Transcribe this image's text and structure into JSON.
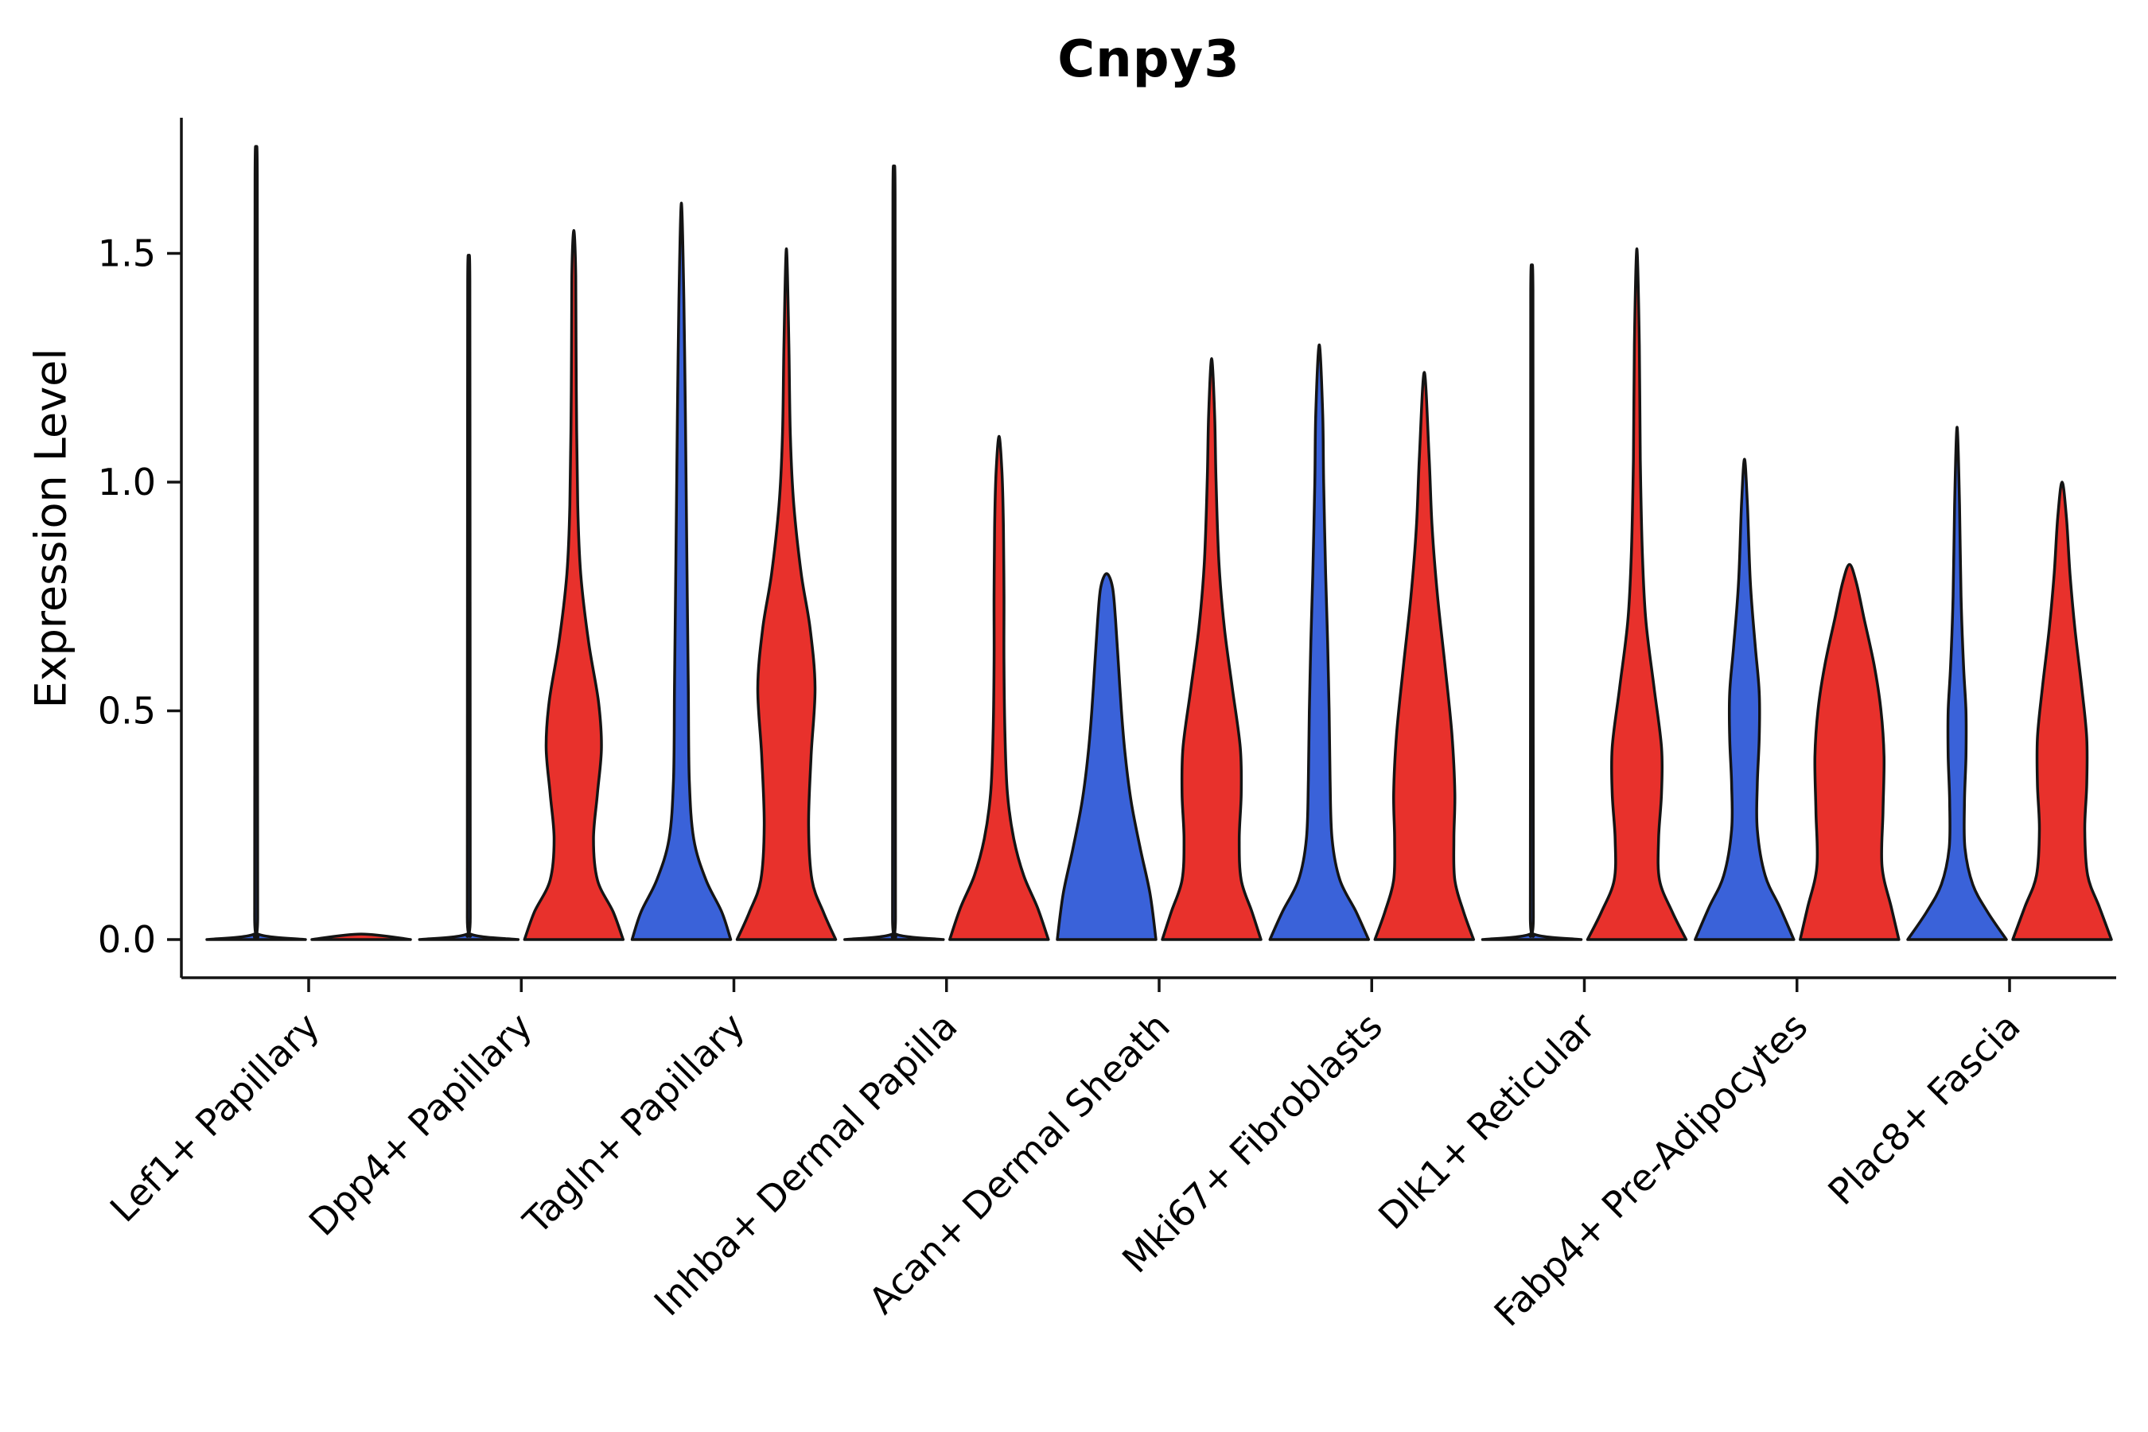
{
  "chart_data": {
    "type": "violin",
    "title": "Cnpy3",
    "ylabel": "Expression Level",
    "xlabel": "",
    "ylim": [
      -0.09,
      1.8
    ],
    "grid": false,
    "legend_position": "none",
    "x_tick_rotation_deg": 45,
    "outline_color": "#141414",
    "yticks": [
      {
        "value": 0.0,
        "label": "0.0"
      },
      {
        "value": 0.5,
        "label": "0.5"
      },
      {
        "value": 1.0,
        "label": "1.0"
      },
      {
        "value": 1.5,
        "label": "1.5"
      }
    ],
    "categories": [
      "Lef1+ Papillary",
      "Dpp4+ Papillary",
      "Tagln+ Papillary",
      "Inhba+ Dermal Papilla",
      "Acan+ Dermal Sheath",
      "Mki67+ Fibroblasts",
      "Dlk1+ Reticular",
      "Fabp4+ Pre-Adipocytes",
      "Plac8+ Fascia"
    ],
    "series": [
      {
        "name": "blue",
        "color": "#3A62D9",
        "violins": [
          {
            "max": 1.72,
            "profile": [
              [
                0,
                1.0
              ],
              [
                0.012,
                0.035
              ],
              [
                0.05,
                0.03
              ],
              [
                0.5,
                0.028
              ],
              [
                1.1,
                0.025
              ],
              [
                1.67,
                0.022
              ],
              [
                1.72,
                0
              ]
            ]
          },
          {
            "max": 1.49,
            "profile": [
              [
                0,
                1.0
              ],
              [
                0.012,
                0.035
              ],
              [
                0.05,
                0.03
              ],
              [
                0.45,
                0.028
              ],
              [
                1.0,
                0.025
              ],
              [
                1.44,
                0.022
              ],
              [
                1.49,
                0
              ]
            ]
          },
          {
            "max": 1.61,
            "profile": [
              [
                0,
                1.0
              ],
              [
                0.06,
                0.82
              ],
              [
                0.13,
                0.5
              ],
              [
                0.22,
                0.25
              ],
              [
                0.35,
                0.16
              ],
              [
                0.55,
                0.14
              ],
              [
                0.75,
                0.12
              ],
              [
                0.95,
                0.1
              ],
              [
                1.15,
                0.08
              ],
              [
                1.4,
                0.05
              ],
              [
                1.61,
                0
              ]
            ]
          },
          {
            "max": 1.68,
            "profile": [
              [
                0,
                1.0
              ],
              [
                0.012,
                0.035
              ],
              [
                0.05,
                0.03
              ],
              [
                0.5,
                0.028
              ],
              [
                1.1,
                0.025
              ],
              [
                1.63,
                0.022
              ],
              [
                1.68,
                0
              ]
            ]
          },
          {
            "max": 0.8,
            "profile": [
              [
                0,
                1.0
              ],
              [
                0.1,
                0.88
              ],
              [
                0.2,
                0.68
              ],
              [
                0.3,
                0.5
              ],
              [
                0.4,
                0.38
              ],
              [
                0.5,
                0.3
              ],
              [
                0.6,
                0.24
              ],
              [
                0.7,
                0.18
              ],
              [
                0.77,
                0.12
              ],
              [
                0.8,
                0
              ]
            ]
          },
          {
            "max": 1.3,
            "profile": [
              [
                0,
                1.0
              ],
              [
                0.06,
                0.75
              ],
              [
                0.13,
                0.42
              ],
              [
                0.22,
                0.26
              ],
              [
                0.35,
                0.22
              ],
              [
                0.5,
                0.2
              ],
              [
                0.65,
                0.17
              ],
              [
                0.8,
                0.13
              ],
              [
                1.0,
                0.09
              ],
              [
                1.15,
                0.07
              ],
              [
                1.3,
                0
              ]
            ]
          },
          {
            "max": 1.47,
            "profile": [
              [
                0,
                1.0
              ],
              [
                0.012,
                0.035
              ],
              [
                0.05,
                0.03
              ],
              [
                0.45,
                0.028
              ],
              [
                1.0,
                0.025
              ],
              [
                1.42,
                0.022
              ],
              [
                1.47,
                0
              ]
            ]
          },
          {
            "max": 1.05,
            "profile": [
              [
                0,
                1.0
              ],
              [
                0.07,
                0.72
              ],
              [
                0.14,
                0.42
              ],
              [
                0.24,
                0.26
              ],
              [
                0.34,
                0.26
              ],
              [
                0.44,
                0.3
              ],
              [
                0.54,
                0.3
              ],
              [
                0.64,
                0.22
              ],
              [
                0.78,
                0.12
              ],
              [
                0.95,
                0.06
              ],
              [
                1.05,
                0
              ]
            ]
          },
          {
            "max": 1.12,
            "profile": [
              [
                0,
                1.0
              ],
              [
                0.06,
                0.62
              ],
              [
                0.12,
                0.32
              ],
              [
                0.2,
                0.16
              ],
              [
                0.3,
                0.15
              ],
              [
                0.4,
                0.18
              ],
              [
                0.5,
                0.18
              ],
              [
                0.6,
                0.13
              ],
              [
                0.75,
                0.08
              ],
              [
                0.95,
                0.05
              ],
              [
                1.12,
                0
              ]
            ]
          }
        ]
      },
      {
        "name": "red",
        "color": "#E8312C",
        "violins": [
          {
            "max": 0.0,
            "profile": [
              [
                0,
                1.0
              ],
              [
                0.012,
                0
              ]
            ]
          },
          {
            "max": 1.55,
            "profile": [
              [
                0,
                1.0
              ],
              [
                0.06,
                0.8
              ],
              [
                0.13,
                0.48
              ],
              [
                0.22,
                0.4
              ],
              [
                0.32,
                0.48
              ],
              [
                0.42,
                0.56
              ],
              [
                0.52,
                0.5
              ],
              [
                0.65,
                0.3
              ],
              [
                0.8,
                0.14
              ],
              [
                0.95,
                0.08
              ],
              [
                1.2,
                0.05
              ],
              [
                1.45,
                0.04
              ],
              [
                1.55,
                0
              ]
            ]
          },
          {
            "max": 1.51,
            "profile": [
              [
                0,
                1.0
              ],
              [
                0.06,
                0.75
              ],
              [
                0.13,
                0.52
              ],
              [
                0.25,
                0.45
              ],
              [
                0.4,
                0.5
              ],
              [
                0.55,
                0.58
              ],
              [
                0.68,
                0.48
              ],
              [
                0.8,
                0.3
              ],
              [
                0.95,
                0.15
              ],
              [
                1.1,
                0.08
              ],
              [
                1.3,
                0.05
              ],
              [
                1.51,
                0
              ]
            ]
          },
          {
            "max": 1.1,
            "profile": [
              [
                0,
                1.0
              ],
              [
                0.07,
                0.78
              ],
              [
                0.14,
                0.5
              ],
              [
                0.22,
                0.3
              ],
              [
                0.32,
                0.17
              ],
              [
                0.45,
                0.12
              ],
              [
                0.6,
                0.1
              ],
              [
                0.75,
                0.1
              ],
              [
                0.9,
                0.09
              ],
              [
                1.02,
                0.06
              ],
              [
                1.1,
                0
              ]
            ]
          },
          {
            "max": 1.27,
            "profile": [
              [
                0,
                1.0
              ],
              [
                0.06,
                0.82
              ],
              [
                0.13,
                0.6
              ],
              [
                0.22,
                0.56
              ],
              [
                0.32,
                0.6
              ],
              [
                0.42,
                0.58
              ],
              [
                0.55,
                0.42
              ],
              [
                0.68,
                0.26
              ],
              [
                0.82,
                0.15
              ],
              [
                1.0,
                0.09
              ],
              [
                1.15,
                0.06
              ],
              [
                1.27,
                0
              ]
            ]
          },
          {
            "max": 1.24,
            "profile": [
              [
                0,
                1.0
              ],
              [
                0.06,
                0.8
              ],
              [
                0.13,
                0.62
              ],
              [
                0.22,
                0.6
              ],
              [
                0.32,
                0.62
              ],
              [
                0.45,
                0.56
              ],
              [
                0.6,
                0.42
              ],
              [
                0.75,
                0.27
              ],
              [
                0.9,
                0.16
              ],
              [
                1.05,
                0.1
              ],
              [
                1.24,
                0
              ]
            ]
          },
          {
            "max": 1.51,
            "profile": [
              [
                0,
                1.0
              ],
              [
                0.06,
                0.72
              ],
              [
                0.13,
                0.46
              ],
              [
                0.22,
                0.44
              ],
              [
                0.32,
                0.5
              ],
              [
                0.42,
                0.5
              ],
              [
                0.55,
                0.35
              ],
              [
                0.7,
                0.18
              ],
              [
                0.85,
                0.11
              ],
              [
                1.05,
                0.07
              ],
              [
                1.3,
                0.05
              ],
              [
                1.51,
                0
              ]
            ]
          },
          {
            "max": 0.82,
            "profile": [
              [
                0,
                1.0
              ],
              [
                0.07,
                0.85
              ],
              [
                0.16,
                0.66
              ],
              [
                0.28,
                0.68
              ],
              [
                0.4,
                0.7
              ],
              [
                0.5,
                0.64
              ],
              [
                0.6,
                0.5
              ],
              [
                0.7,
                0.3
              ],
              [
                0.78,
                0.14
              ],
              [
                0.82,
                0
              ]
            ]
          },
          {
            "max": 1.0,
            "profile": [
              [
                0,
                1.0
              ],
              [
                0.07,
                0.76
              ],
              [
                0.14,
                0.52
              ],
              [
                0.24,
                0.46
              ],
              [
                0.34,
                0.5
              ],
              [
                0.44,
                0.5
              ],
              [
                0.55,
                0.4
              ],
              [
                0.68,
                0.26
              ],
              [
                0.8,
                0.16
              ],
              [
                0.92,
                0.09
              ],
              [
                1.0,
                0
              ]
            ]
          }
        ]
      }
    ]
  }
}
